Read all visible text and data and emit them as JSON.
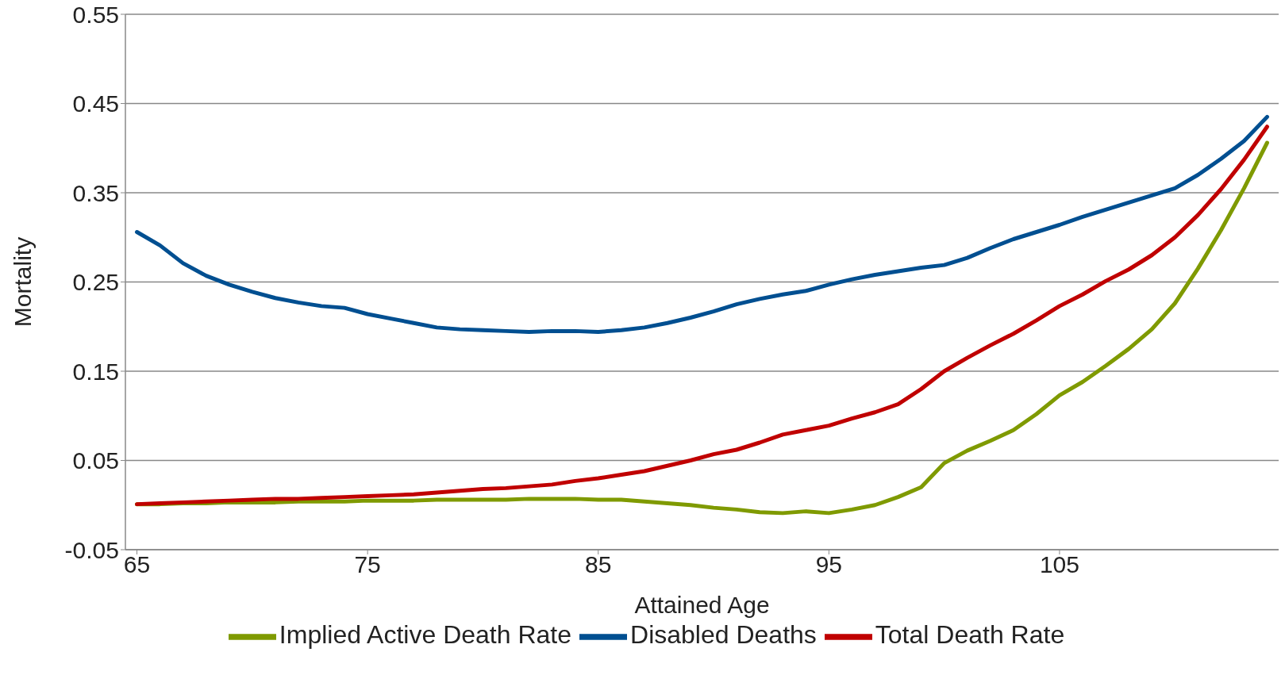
{
  "chart_data": {
    "type": "line",
    "xlabel": "Attained Age",
    "ylabel": "Mortality",
    "x": [
      65,
      66,
      67,
      68,
      69,
      70,
      71,
      72,
      73,
      74,
      75,
      76,
      77,
      78,
      79,
      80,
      81,
      82,
      83,
      84,
      85,
      86,
      87,
      88,
      89,
      90,
      91,
      92,
      93,
      94,
      95,
      96,
      97,
      98,
      99,
      100,
      101,
      102,
      103,
      104,
      105,
      106,
      107,
      108,
      109,
      110,
      111,
      112,
      113,
      114
    ],
    "series": [
      {
        "name": "Implied Active Death Rate",
        "color": "#7f9a00",
        "values": [
          0.001,
          0.001,
          0.002,
          0.002,
          0.003,
          0.003,
          0.003,
          0.004,
          0.004,
          0.004,
          0.005,
          0.005,
          0.005,
          0.006,
          0.006,
          0.006,
          0.006,
          0.007,
          0.007,
          0.007,
          0.006,
          0.006,
          0.004,
          0.002,
          0.0,
          -0.003,
          -0.005,
          -0.008,
          -0.009,
          -0.007,
          -0.009,
          -0.005,
          0.0,
          0.009,
          0.02,
          0.047,
          0.061,
          0.072,
          0.084,
          0.102,
          0.123,
          0.138,
          0.156,
          0.175,
          0.197,
          0.226,
          0.265,
          0.308,
          0.355,
          0.406
        ]
      },
      {
        "name": "Disabled Deaths",
        "color": "#004f91",
        "values": [
          0.306,
          0.291,
          0.271,
          0.257,
          0.247,
          0.239,
          0.232,
          0.227,
          0.223,
          0.221,
          0.214,
          0.209,
          0.204,
          0.199,
          0.197,
          0.196,
          0.195,
          0.194,
          0.195,
          0.195,
          0.194,
          0.196,
          0.199,
          0.204,
          0.21,
          0.217,
          0.225,
          0.231,
          0.236,
          0.24,
          0.247,
          0.253,
          0.258,
          0.262,
          0.266,
          0.269,
          0.277,
          0.288,
          0.298,
          0.306,
          0.314,
          0.323,
          0.331,
          0.339,
          0.347,
          0.355,
          0.37,
          0.388,
          0.408,
          0.435
        ]
      },
      {
        "name": "Total Death Rate",
        "color": "#c00000",
        "values": [
          0.001,
          0.002,
          0.003,
          0.004,
          0.005,
          0.006,
          0.007,
          0.007,
          0.008,
          0.009,
          0.01,
          0.011,
          0.012,
          0.014,
          0.016,
          0.018,
          0.019,
          0.021,
          0.023,
          0.027,
          0.03,
          0.034,
          0.038,
          0.044,
          0.05,
          0.057,
          0.062,
          0.07,
          0.079,
          0.084,
          0.089,
          0.097,
          0.104,
          0.113,
          0.13,
          0.15,
          0.165,
          0.179,
          0.192,
          0.207,
          0.223,
          0.236,
          0.251,
          0.264,
          0.28,
          0.3,
          0.325,
          0.354,
          0.387,
          0.424
        ]
      }
    ],
    "xlim": [
      64.5,
      114.5
    ],
    "xticks": [
      65,
      75,
      85,
      95,
      105
    ],
    "ylim": [
      -0.05,
      0.55
    ],
    "yticks": [
      -0.05,
      0.05,
      0.15,
      0.25,
      0.35,
      0.45,
      0.55
    ],
    "grid": "y",
    "legend": "bottom",
    "marker": "none",
    "line_style": "solid"
  }
}
